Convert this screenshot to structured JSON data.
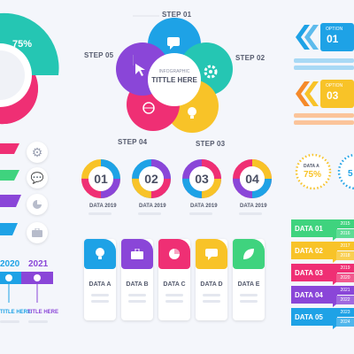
{
  "colors": {
    "teal": "#25c6b3",
    "pink": "#ef2f74",
    "purple": "#8a46d8",
    "blue": "#1ea2e6",
    "yellow": "#f8c328",
    "orange": "#f58a2a",
    "green": "#3fd37e",
    "grey": "#e4e7ef"
  },
  "pie": {
    "percent": "75%"
  },
  "petals": {
    "title_line1": "INFOGRAPHIC",
    "title_line2": "TITTLE HERE",
    "steps": [
      "STEP 01",
      "STEP 02",
      "STEP 03",
      "STEP 04",
      "STEP 05"
    ],
    "icons": [
      "chat-icon",
      "gear-icon",
      "bulb-icon",
      "globe-icon",
      "cursor-icon"
    ]
  },
  "side_icons": [
    "gear-icon",
    "chat-icon",
    "pie-chart-icon",
    "briefcase-icon"
  ],
  "timeline": {
    "years": [
      "2020",
      "2021"
    ],
    "titles": [
      "TITLE HERE",
      "TITLE HERE"
    ]
  },
  "rings": [
    {
      "num": "01",
      "label": "DATA 2019",
      "progress": 0.75
    },
    {
      "num": "02",
      "label": "DATA 2019",
      "progress": 0.75
    },
    {
      "num": "03",
      "label": "DATA 2019",
      "progress": 0.75
    },
    {
      "num": "04",
      "label": "DATA 2019",
      "progress": 0.75
    }
  ],
  "cards": [
    {
      "label": "DATA A",
      "icon": "bulb-icon"
    },
    {
      "label": "DATA B",
      "icon": "briefcase-icon"
    },
    {
      "label": "DATA C",
      "icon": "pie-chart-icon"
    },
    {
      "label": "DATA D",
      "icon": "chat-icon"
    },
    {
      "label": "DATA E",
      "icon": "leaf-icon"
    }
  ],
  "arrows": {
    "numbers": [
      "01",
      "03"
    ],
    "caption": "OPTION"
  },
  "dotted": {
    "label": "DATA A",
    "percent": "75%",
    "partial": "5"
  },
  "tabs": [
    "DATA 01",
    "DATA 02",
    "DATA 03",
    "DATA 04",
    "DATA 05"
  ],
  "tab_years": [
    "2015",
    "2016",
    "2017",
    "2018",
    "2019",
    "2020",
    "2021",
    "2022",
    "2023",
    "2024"
  ]
}
